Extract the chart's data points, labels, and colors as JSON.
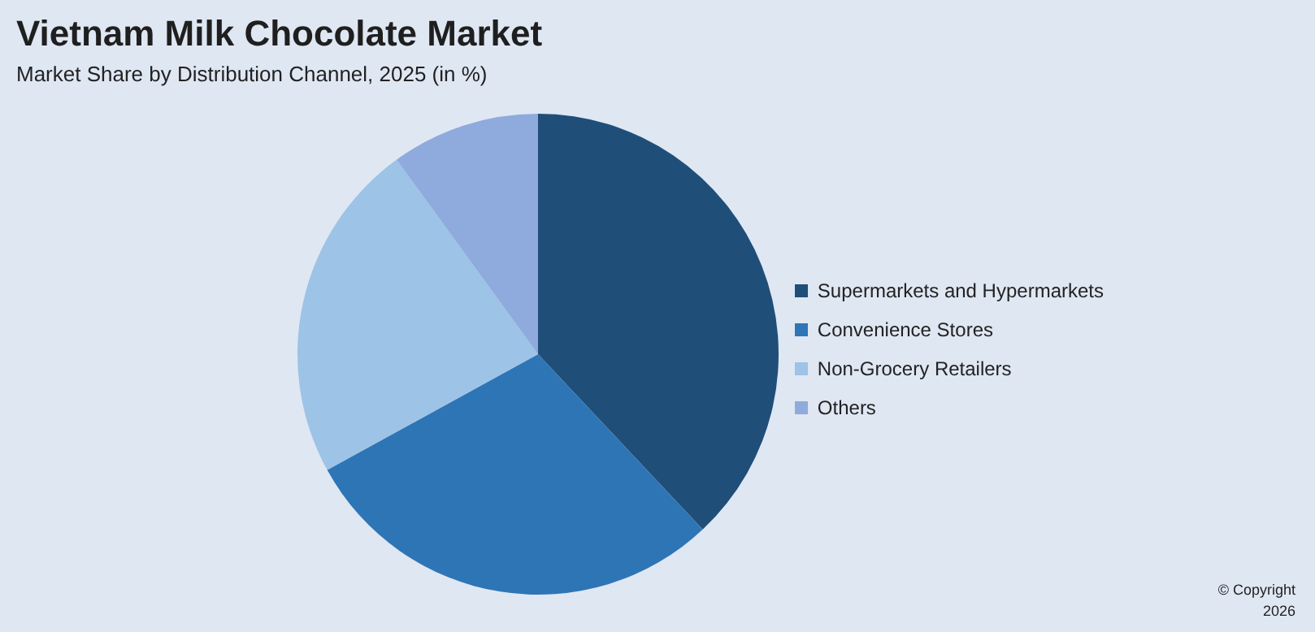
{
  "chart_data": {
    "type": "pie",
    "title": "Vietnam Milk Chocolate Market",
    "subtitle": "Market Share by Distribution Channel, 2025 (in %)",
    "categories": [
      "Supermarkets and Hypermarkets",
      "Convenience Stores",
      "Non-Grocery Retailers",
      "Others"
    ],
    "values": [
      38,
      29,
      23,
      10
    ],
    "colors": [
      "#1f4e79",
      "#2e75b6",
      "#9dc3e6",
      "#8faadc"
    ],
    "legend": "right",
    "annotations": [
      "© Copyright",
      "2026"
    ]
  }
}
